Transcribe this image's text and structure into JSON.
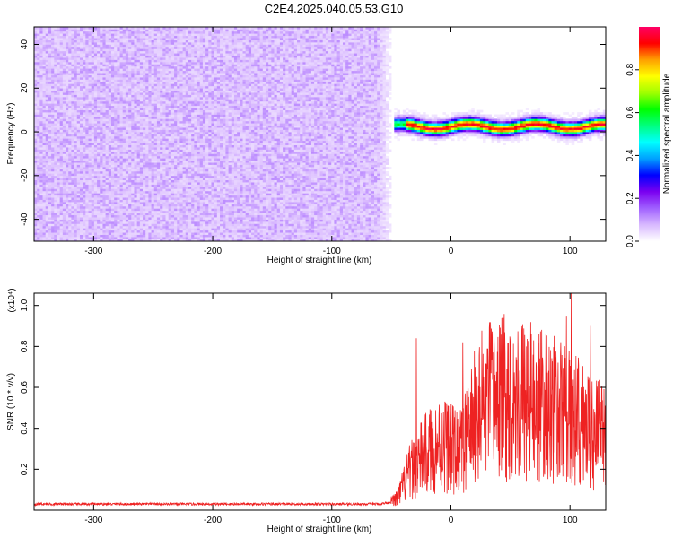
{
  "title": "C2E4.2025.040.05.53.G10",
  "colors": {
    "snr_line": "#ee2222",
    "frame": "#000000"
  },
  "chart_data": [
    {
      "type": "heatmap",
      "title": "C2E4.2025.040.05.53.G10",
      "xlabel": "Height of straight line (km)",
      "ylabel": "Frequency (Hz)",
      "xlim": [
        -350,
        130
      ],
      "ylim": [
        -50,
        48
      ],
      "xticks": [
        -300,
        -200,
        -100,
        0,
        100
      ],
      "yticks": [
        -40,
        -20,
        0,
        20,
        40
      ],
      "colorbar": {
        "label": "Normalized spectral amplitude",
        "range": [
          0,
          1
        ],
        "ticks": [
          "0.0",
          "0.2",
          "0.4",
          "0.6",
          "0.8"
        ],
        "colormap": [
          "#ffffff",
          "#d8b8ff",
          "#a060ff",
          "#7a00f0",
          "#0000ff",
          "#00a0ff",
          "#00ffff",
          "#00ff80",
          "#00ff00",
          "#a0ff00",
          "#ffff00",
          "#ffa000",
          "#ff0000",
          "#ff0066"
        ]
      },
      "noise_region_end_x": -48,
      "ridge": {
        "x_start": -60,
        "x_end": 130,
        "center_freq_hz": 2,
        "peak_start_x": -40
      },
      "legend": "none"
    },
    {
      "type": "line",
      "xlabel": "Height of straight line (km)",
      "ylabel": "SNR (10 * v/v)",
      "y_multiplier": "(x10⁴)",
      "xlim": [
        -350,
        130
      ],
      "ylim": [
        0,
        1.06
      ],
      "xticks": [
        -300,
        -200,
        -100,
        0,
        100
      ],
      "yticks": [
        0.2,
        0.4,
        0.6,
        0.8,
        1.0
      ],
      "ytick_labels": [
        "0.2",
        "0.4",
        "0.6",
        "0.8",
        "1.0"
      ],
      "series": [
        {
          "x": [
            -350,
            -300,
            -250,
            -200,
            -150,
            -100,
            -60,
            -50,
            -45,
            -40,
            -35,
            -30,
            -25,
            -20,
            -15,
            -10,
            -5,
            0,
            5,
            10,
            15,
            20,
            25,
            30,
            40,
            50,
            60,
            70,
            80,
            90,
            100,
            110,
            120,
            130
          ],
          "y": [
            0.03,
            0.03,
            0.03,
            0.03,
            0.03,
            0.03,
            0.03,
            0.04,
            0.06,
            0.12,
            0.18,
            0.22,
            0.25,
            0.28,
            0.3,
            0.32,
            0.33,
            0.3,
            0.28,
            0.3,
            0.38,
            0.45,
            0.5,
            0.53,
            0.55,
            0.55,
            0.54,
            0.52,
            0.5,
            0.48,
            0.45,
            0.42,
            0.38,
            0.35
          ],
          "peaks": [
            {
              "x": -29,
              "y": 0.84
            },
            {
              "x": 10,
              "y": 0.82
            },
            {
              "x": 97,
              "y": 0.95
            },
            {
              "x": 101,
              "y": 1.06
            },
            {
              "x": 117,
              "y": 0.9
            }
          ]
        }
      ],
      "legend": "none"
    }
  ]
}
